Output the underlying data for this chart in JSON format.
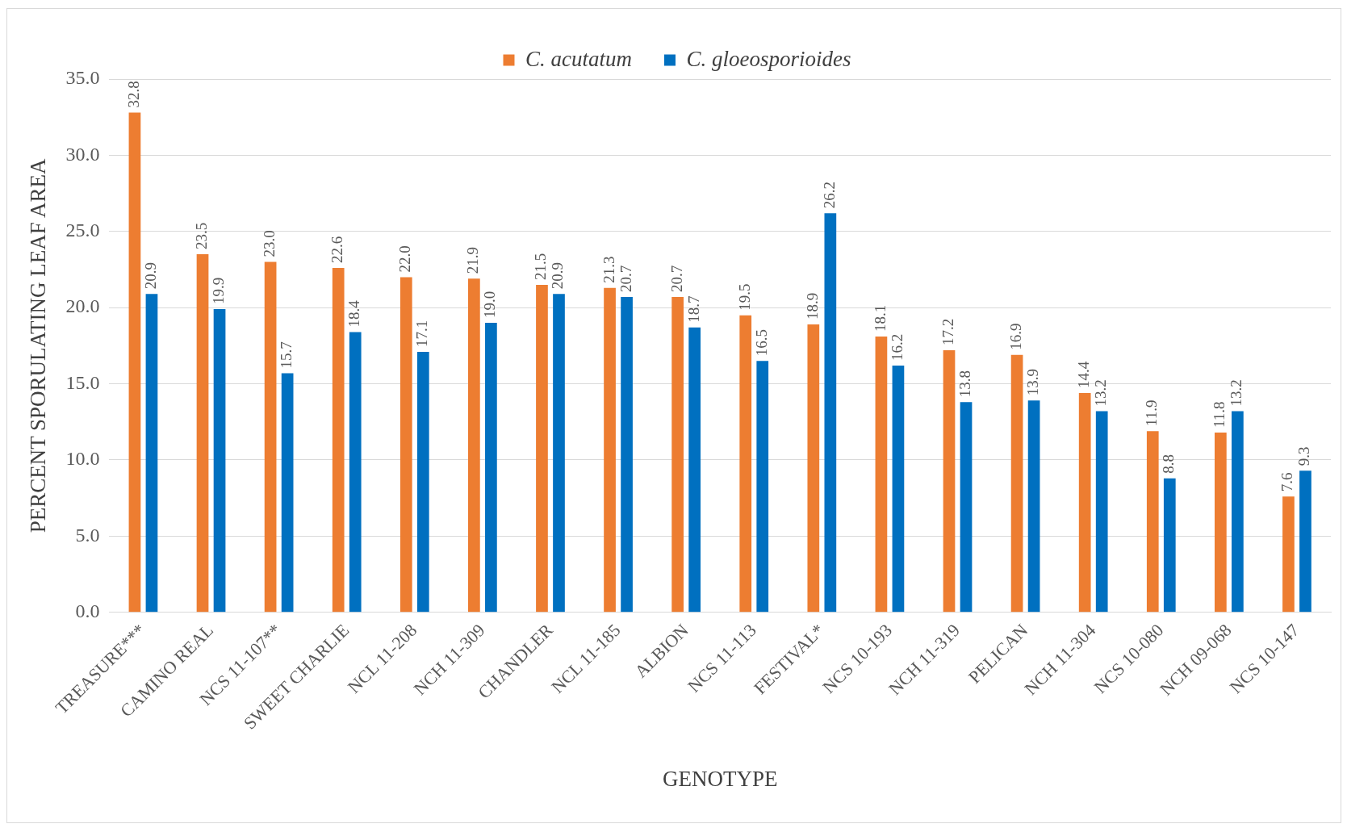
{
  "chart_data": {
    "type": "bar",
    "xlabel": "GENOTYPE",
    "ylabel": "PERCENT SPORULATING LEAF AREA",
    "categories": [
      "TREASURE***",
      "CAMINO REAL",
      "NCS 11-107**",
      "SWEET CHARLIE",
      "NCL 11-208",
      "NCH 11-309",
      "CHANDLER",
      "NCL 11-185",
      "ALBION",
      "NCS 11-113",
      "FESTIVAL*",
      "NCS 10-193",
      "NCH 11-319",
      "PELICAN",
      "NCH 11-304",
      "NCS 10-080",
      "NCH 09-068",
      "NCS 10-147"
    ],
    "series": [
      {
        "name": "C. acutatum",
        "color": "#ed7d31",
        "values": [
          32.8,
          23.5,
          23.0,
          22.6,
          22.0,
          21.9,
          21.5,
          21.3,
          20.7,
          19.5,
          18.9,
          18.1,
          17.2,
          16.9,
          14.4,
          11.9,
          11.8,
          7.6
        ],
        "value_labels": [
          "32.8",
          "23.5",
          "23.0",
          "22.6",
          "22.0",
          "21.9",
          "21.5",
          "21.3",
          "20.7",
          "19.5",
          "18.9",
          "18.1",
          "17.2",
          "16.9",
          "14.4",
          "11.9",
          "11.8",
          "7.6"
        ]
      },
      {
        "name": "C. gloeosporioides",
        "color": "#0070c0",
        "values": [
          20.9,
          19.9,
          15.7,
          18.4,
          17.1,
          19.0,
          20.9,
          20.7,
          18.7,
          16.5,
          26.2,
          16.2,
          13.8,
          13.9,
          13.2,
          8.8,
          13.2,
          9.3
        ],
        "value_labels": [
          "20.9",
          "19.9",
          "15.7",
          "18.4",
          "17.1",
          "19.0",
          "20.9",
          "20.7",
          "18.7",
          "16.5",
          "26.2",
          "16.2",
          "13.8",
          "13.9",
          "13.2",
          "8.8",
          "13.2",
          "9.3"
        ]
      }
    ],
    "ylim": [
      0,
      35
    ],
    "yticks": [
      {
        "value": 0,
        "label": "0.0"
      },
      {
        "value": 5,
        "label": "5.0"
      },
      {
        "value": 10,
        "label": "10.0"
      },
      {
        "value": 15,
        "label": "15.0"
      },
      {
        "value": 20,
        "label": "20.0"
      },
      {
        "value": 25,
        "label": "25.0"
      },
      {
        "value": 30,
        "label": "30.0"
      },
      {
        "value": 35,
        "label": "35.0"
      }
    ],
    "grid": "y",
    "legend": "top"
  }
}
